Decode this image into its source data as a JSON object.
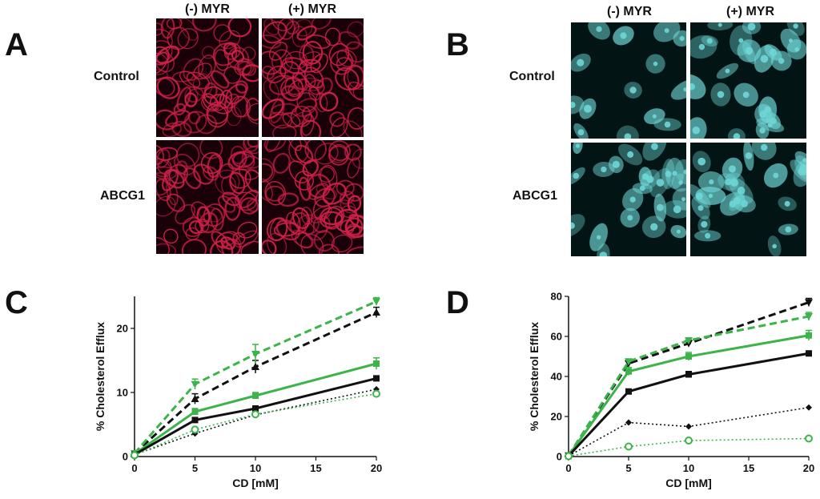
{
  "panels": {
    "A": {
      "letter": "A",
      "col_labels": [
        "(-) MYR",
        "(+) MYR"
      ],
      "row_labels": [
        "Control",
        "ABCG1"
      ],
      "stain_color": "#d0204a",
      "background": "#1a0008"
    },
    "B": {
      "letter": "B",
      "col_labels": [
        "(-) MYR",
        "(+) MYR"
      ],
      "row_labels": [
        "Control",
        "ABCG1"
      ],
      "stain_color": "#6fd6d6",
      "background": "#031414"
    },
    "C": {
      "letter": "C"
    },
    "D": {
      "letter": "D"
    }
  },
  "colors": {
    "black": "#111111",
    "green": "#3cb44a"
  },
  "chart_data": [
    {
      "panel": "C",
      "type": "line",
      "xlabel": "CD [mM]",
      "ylabel": "% Cholesterol Efflux",
      "xlim": [
        0,
        20
      ],
      "ylim": [
        0,
        25
      ],
      "xticks": [
        0,
        5,
        10,
        15,
        20
      ],
      "yticks": [
        0,
        10,
        20
      ],
      "x": [
        0,
        5,
        10,
        20
      ],
      "series": [
        {
          "name": "black dashed",
          "color": "black",
          "style": "dashed",
          "marker": "triangle-up",
          "values": [
            0.5,
            9,
            14,
            22.5
          ],
          "err": [
            0.3,
            0.8,
            1.0,
            0.8
          ]
        },
        {
          "name": "green dashed",
          "color": "green",
          "style": "dashed",
          "marker": "triangle-down",
          "values": [
            0.5,
            11.3,
            16,
            24.2
          ],
          "err": [
            0.3,
            0.8,
            1.5,
            0.6
          ]
        },
        {
          "name": "green solid",
          "color": "green",
          "style": "solid",
          "marker": "square",
          "values": [
            0.4,
            7,
            9.5,
            14.5
          ],
          "err": [
            0.2,
            0.5,
            0.5,
            0.9
          ]
        },
        {
          "name": "black solid",
          "color": "black",
          "style": "solid",
          "marker": "square",
          "values": [
            0.3,
            5.7,
            7.5,
            12.2
          ],
          "err": [
            0.2,
            0.3,
            0.4,
            0.4
          ]
        },
        {
          "name": "black dotted",
          "color": "black",
          "style": "dotted",
          "marker": "diamond",
          "values": [
            0.3,
            3.6,
            6.5,
            10.5
          ],
          "err": [
            0,
            0,
            0,
            0
          ]
        },
        {
          "name": "green dotted",
          "color": "green",
          "style": "dotted",
          "marker": "open-circle",
          "values": [
            0.2,
            4.2,
            6.6,
            9.8
          ],
          "err": [
            0,
            0,
            0,
            0
          ]
        }
      ]
    },
    {
      "panel": "D",
      "type": "line",
      "xlabel": "CD [mM]",
      "ylabel": "% Cholesterol Efflux",
      "xlim": [
        0,
        20
      ],
      "ylim": [
        0,
        80
      ],
      "xticks": [
        0,
        5,
        10,
        15,
        20
      ],
      "yticks": [
        0,
        20,
        40,
        60,
        80
      ],
      "x": [
        0,
        5,
        10,
        20
      ],
      "series": [
        {
          "name": "black dashed",
          "color": "black",
          "style": "dashed",
          "marker": "triangle-down",
          "values": [
            0.5,
            46.5,
            56.5,
            77
          ],
          "err": [
            0.3,
            1.0,
            1.5,
            2.0
          ]
        },
        {
          "name": "green dashed",
          "color": "green",
          "style": "dashed",
          "marker": "triangle-down",
          "values": [
            0.5,
            47.5,
            58,
            70
          ],
          "err": [
            0.3,
            1.0,
            1.0,
            2.0
          ]
        },
        {
          "name": "green solid",
          "color": "green",
          "style": "solid",
          "marker": "square",
          "values": [
            0.4,
            42.5,
            50,
            60.5
          ],
          "err": [
            0.3,
            2.0,
            2.0,
            2.5
          ]
        },
        {
          "name": "black solid",
          "color": "black",
          "style": "solid",
          "marker": "square",
          "values": [
            0.3,
            32.5,
            41,
            51.5
          ],
          "err": [
            0.2,
            1.0,
            1.5,
            1.0
          ]
        },
        {
          "name": "black dotted",
          "color": "black",
          "style": "dotted",
          "marker": "diamond",
          "values": [
            0.3,
            17,
            15,
            24.5
          ],
          "err": [
            0,
            0,
            0,
            0
          ]
        },
        {
          "name": "green dotted",
          "color": "green",
          "style": "dotted",
          "marker": "open-circle",
          "values": [
            0.2,
            5,
            8,
            9
          ],
          "err": [
            0,
            0,
            0,
            0
          ]
        }
      ]
    }
  ]
}
